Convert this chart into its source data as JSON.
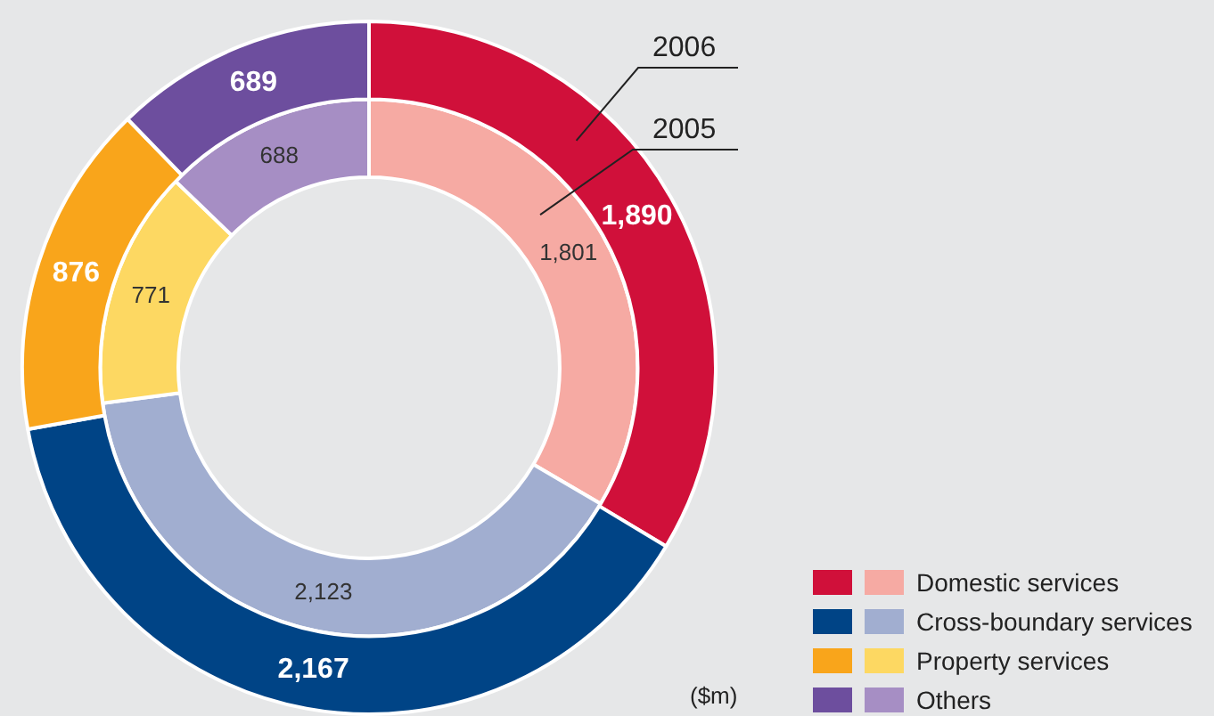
{
  "chart_data": {
    "type": "donut",
    "categories": [
      "Domestic services",
      "Cross-boundary services",
      "Property services",
      "Others"
    ],
    "series": [
      {
        "name": "2006",
        "colors": [
          "#d0103a",
          "#004486",
          "#f9a51b",
          "#6d4e9e"
        ],
        "values": [
          1890,
          2167,
          876,
          689
        ],
        "value_labels": [
          "1,890",
          "2,167",
          "876",
          "689"
        ]
      },
      {
        "name": "2005",
        "colors": [
          "#f6aaa3",
          "#a1aed0",
          "#fdd862",
          "#a68ec4"
        ],
        "values": [
          1801,
          2123,
          771,
          688
        ],
        "value_labels": [
          "1,801",
          "2,123",
          "771",
          "688"
        ]
      }
    ],
    "legend": "bottom right",
    "annotations": [
      "($m)"
    ]
  }
}
